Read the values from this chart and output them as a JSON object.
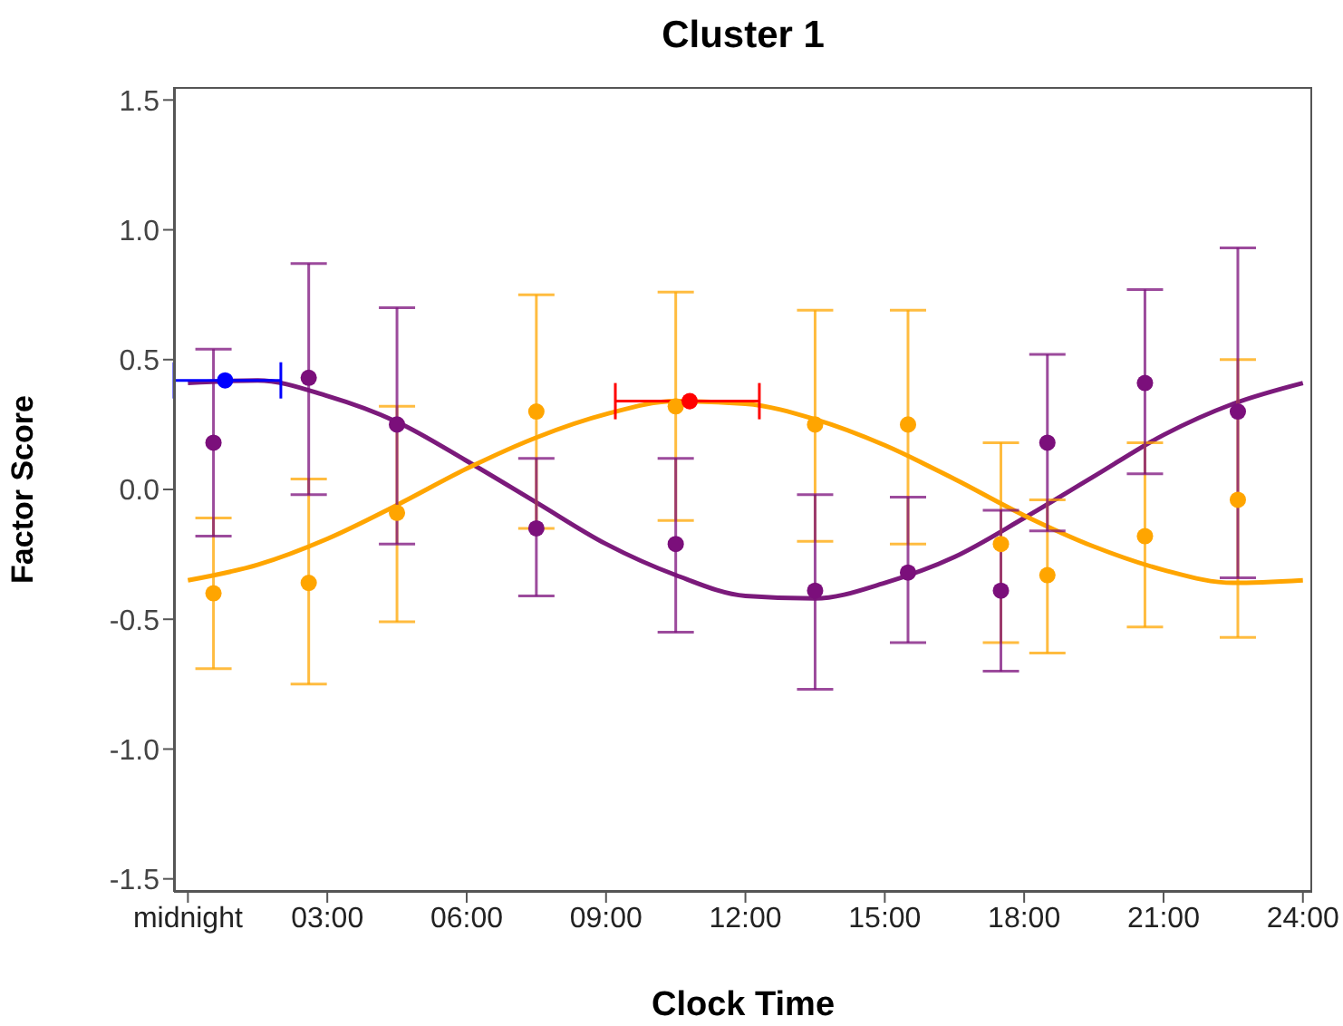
{
  "chart_data": {
    "type": "scatter",
    "title": "Cluster 1",
    "xlabel": "Clock Time",
    "ylabel": "Factor Score",
    "xlim": [
      -0.3,
      24.2
    ],
    "ylim": [
      -1.55,
      1.55
    ],
    "xticks": [
      {
        "value": 0,
        "label": "midnight"
      },
      {
        "value": 3,
        "label": "03:00"
      },
      {
        "value": 6,
        "label": "06:00"
      },
      {
        "value": 9,
        "label": "09:00"
      },
      {
        "value": 12,
        "label": "12:00"
      },
      {
        "value": 15,
        "label": "15:00"
      },
      {
        "value": 18,
        "label": "18:00"
      },
      {
        "value": 21,
        "label": "21:00"
      },
      {
        "value": 24,
        "label": "24:00"
      }
    ],
    "yticks": [
      {
        "value": -1.5,
        "label": "-1.5"
      },
      {
        "value": -1,
        "label": "-1.0"
      },
      {
        "value": -0.5,
        "label": "-0.5"
      },
      {
        "value": 0,
        "label": "0.0"
      },
      {
        "value": 0.5,
        "label": "0.5"
      },
      {
        "value": 1,
        "label": "1.0"
      },
      {
        "value": 1.5,
        "label": "1.5"
      }
    ],
    "marker": "circle",
    "series": [
      {
        "type": "line",
        "marker": "none",
        "color": "#7b1a7b",
        "x": [
          0,
          1.5,
          3,
          4.5,
          6,
          7.5,
          9,
          10.5,
          12,
          13.5,
          15,
          16.5,
          18,
          19.5,
          21,
          22.5,
          24
        ],
        "values": [
          0.41,
          0.42,
          0.36,
          0.26,
          0.11,
          -0.05,
          -0.21,
          -0.33,
          -0.41,
          -0.42,
          -0.36,
          -0.26,
          -0.11,
          0.05,
          0.21,
          0.33,
          0.41
        ]
      },
      {
        "type": "line",
        "marker": "none",
        "color": "#ffa500",
        "x": [
          0,
          1.5,
          3,
          4.5,
          6,
          7.5,
          9,
          10.5,
          12,
          13.5,
          15,
          16.5,
          18,
          19.5,
          21,
          22.5,
          24
        ],
        "values": [
          -0.35,
          -0.29,
          -0.19,
          -0.06,
          0.08,
          0.2,
          0.29,
          0.34,
          0.33,
          0.27,
          0.17,
          0.04,
          -0.1,
          -0.22,
          -0.31,
          -0.36,
          -0.35
        ]
      },
      {
        "color": "#ffa500",
        "x": [
          0.55,
          2.6,
          4.5,
          7.5,
          10.5,
          13.5,
          15.5,
          17.5,
          18.5,
          20.6,
          22.6
        ],
        "values": [
          -0.4,
          -0.36,
          -0.09,
          0.3,
          0.32,
          0.25,
          0.25,
          -0.21,
          -0.33,
          -0.18,
          -0.04
        ],
        "errors": [
          [
            -0.69,
            -0.11
          ],
          [
            -0.75,
            0.04
          ],
          [
            -0.51,
            0.32
          ],
          [
            -0.15,
            0.75
          ],
          [
            -0.12,
            0.76
          ],
          [
            -0.2,
            0.69
          ],
          [
            -0.21,
            0.69
          ],
          [
            -0.59,
            0.18
          ],
          [
            -0.63,
            -0.04
          ],
          [
            -0.53,
            0.18
          ],
          [
            -0.57,
            0.5
          ]
        ]
      },
      {
        "color": "#7b0f7b",
        "x": [
          0.55,
          2.6,
          4.5,
          7.5,
          10.5,
          13.5,
          15.5,
          17.5,
          18.5,
          20.6,
          22.6
        ],
        "values": [
          0.18,
          0.43,
          0.25,
          -0.15,
          -0.21,
          -0.39,
          -0.32,
          -0.39,
          0.18,
          0.41,
          0.3
        ],
        "errors": [
          [
            -0.18,
            0.54
          ],
          [
            -0.02,
            0.87
          ],
          [
            -0.21,
            0.7
          ],
          [
            -0.41,
            0.12
          ],
          [
            -0.55,
            0.12
          ],
          [
            -0.77,
            -0.02
          ],
          [
            -0.59,
            -0.03
          ],
          [
            -0.7,
            -0.08
          ],
          [
            -0.16,
            0.52
          ],
          [
            0.06,
            0.77
          ],
          [
            -0.34,
            0.93
          ]
        ]
      },
      {
        "color": "#0000ff",
        "x": [
          0.8
        ],
        "values": [
          0.42
        ],
        "xerrors": [
          [
            -0.3,
            2.0
          ]
        ]
      },
      {
        "color": "#ff0000",
        "x": [
          10.8
        ],
        "values": [
          0.34
        ],
        "xerrors": [
          [
            9.2,
            12.3
          ]
        ]
      }
    ]
  }
}
